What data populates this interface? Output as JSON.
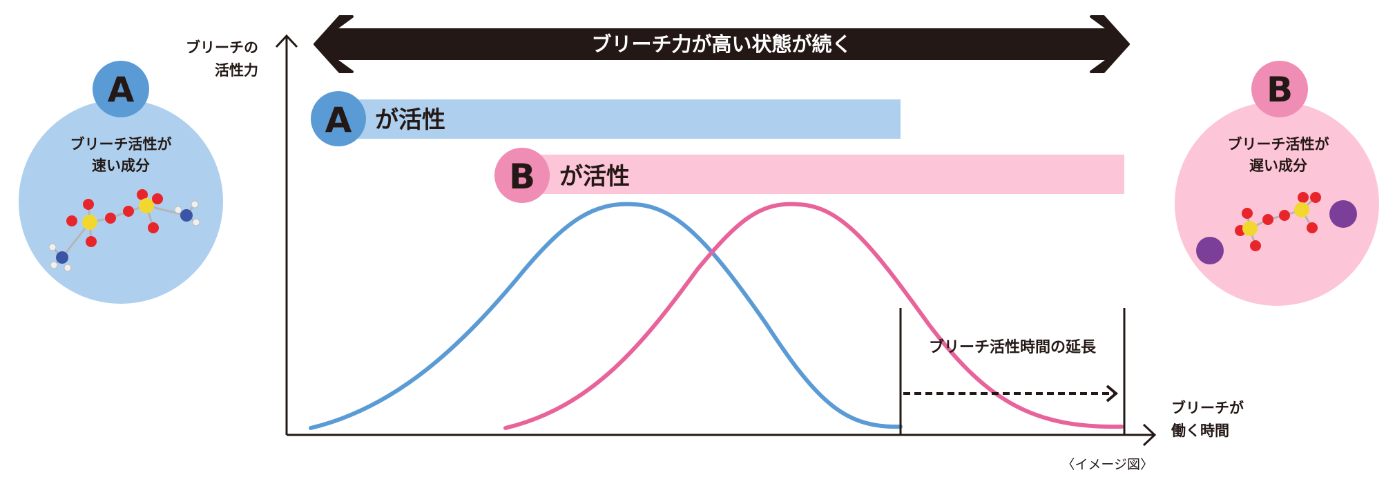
{
  "y_axis_label": [
    "ブリーチの",
    "活性力"
  ],
  "x_axis_label": [
    "ブリーチが",
    "働く時間"
  ],
  "top_arrow_text": "ブリーチ力が高い状態が続く",
  "component_a": {
    "letter": "A",
    "description": [
      "ブリーチ活性が",
      "速い成分"
    ],
    "bar_suffix": "が活性",
    "color": "#5b9bd5",
    "light_color": "#aed0ee"
  },
  "component_b": {
    "letter": "B",
    "description": [
      "ブリーチ活性が",
      "遅い成分"
    ],
    "bar_suffix": "が活性",
    "color": "#e8639a",
    "light_color": "#fdc5d8"
  },
  "extension_label": "ブリーチ活性時間の延長",
  "footnote": "〈イメージ図〉",
  "colors": {
    "arrow": "#231815",
    "axis": "#231815",
    "text": "#231815",
    "oxygen": "#e8252b",
    "sulfur": "#f2d82e",
    "nitrogen": "#3a55a6",
    "hydrogen": "#f0f0f0",
    "potassium": "#7b3f99"
  }
}
